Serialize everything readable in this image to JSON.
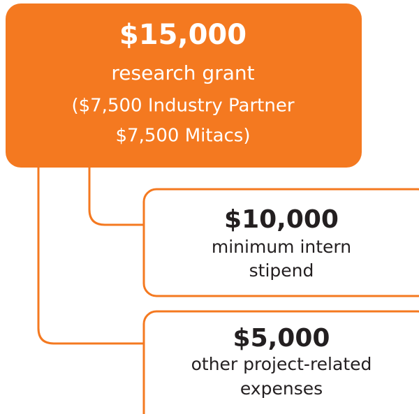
{
  "nodes": [
    {
      "amount": "$15,000",
      "lines": [
        "research grant",
        "($7,500 Industry Partner",
        "$7,500 Mitacs)"
      ]
    },
    {
      "amount": "$10,000",
      "lines": [
        "minimum intern",
        "stipend"
      ]
    },
    {
      "amount": "$5,000",
      "lines": [
        "other project-related",
        "expenses"
      ]
    }
  ]
}
